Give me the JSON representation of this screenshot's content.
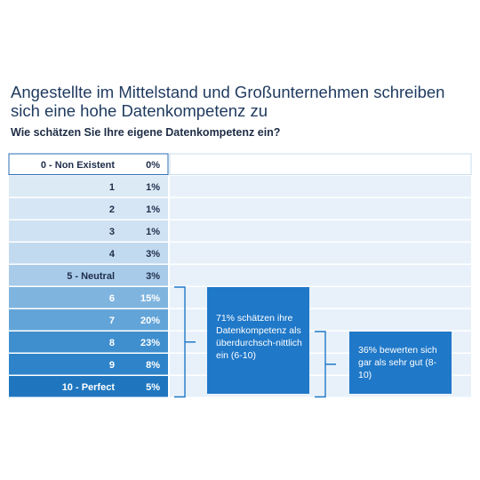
{
  "header": {
    "title": "Angestellte im Mittelstand und Großunternehmen schreiben sich eine hohe Datenkompetenz zu",
    "subtitle": "Wie schätzen Sie Ihre eigene Datenkompetenz ein?"
  },
  "chart_data": {
    "type": "bar",
    "orientation": "horizontal-table",
    "categories": [
      "0 - Non Existent",
      "1",
      "2",
      "3",
      "4",
      "5 - Neutral",
      "6",
      "7",
      "8",
      "9",
      "10 - Perfect"
    ],
    "values": [
      0,
      1,
      1,
      1,
      3,
      3,
      15,
      20,
      23,
      8,
      5
    ],
    "value_labels": [
      "0%",
      "1%",
      "1%",
      "1%",
      "3%",
      "3%",
      "15%",
      "20%",
      "23%",
      "8%",
      "5%"
    ],
    "unit": "%",
    "title": "Angestellte im Mittelstand und Großunternehmen schreiben sich eine hohe Datenkompetenz zu",
    "subtitle": "Wie schätzen Sie Ihre eigene Datenkompetenz ein?",
    "row_colors": [
      "#ffffff",
      "#dceaf6",
      "#d6e6f5",
      "#cfe2f3",
      "#c2daef",
      "#a8cbe9",
      "#7fb4df",
      "#62a4d8",
      "#3f8fcf",
      "#2f84c9",
      "#1f76bf"
    ],
    "annotations": [
      {
        "text": "71% schätzen ihre Datenkompetenz als überdurchsch-nittlich ein (6-10)",
        "range": [
          "6",
          "10 - Perfect"
        ]
      },
      {
        "text": "36% bewerten sich gar als sehr gut (8-10)",
        "range": [
          "8",
          "10 - Perfect"
        ]
      }
    ],
    "grid": false,
    "legend": "none"
  },
  "annotations": [
    {
      "text": "71% schätzen ihre Datenkompetenz als überdurchsch-nittlich ein (6-10)"
    },
    {
      "text": "36% bewerten sich gar als sehr gut (8-10)"
    }
  ],
  "colors": {
    "title": "#1e3a5f",
    "callout": "#1f78c8",
    "bracket": "#1f78c8",
    "row_bg": "#e8f1fa",
    "border": "#2a6db5"
  }
}
